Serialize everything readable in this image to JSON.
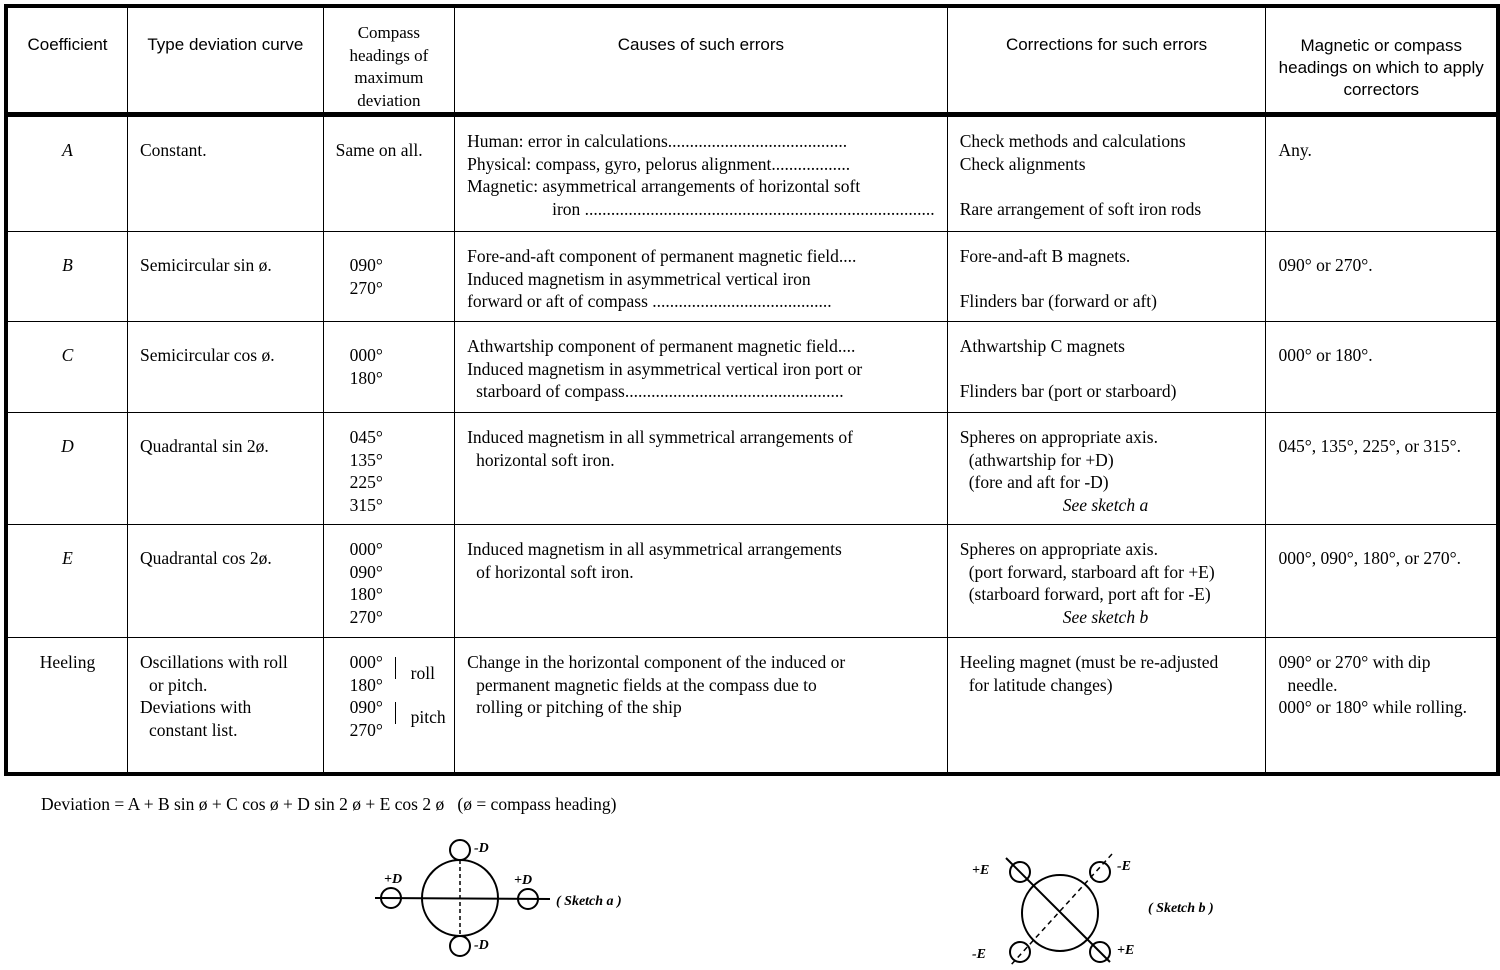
{
  "table": {
    "headers": [
      "Coefficient",
      "Type deviation curve",
      "Compass headings of maximum deviation",
      "Causes of such errors",
      "Corrections for such errors",
      "Magnetic or compass headings on which to apply correctors"
    ],
    "header_lines": {
      "compass": [
        "Compass",
        "headings of",
        "maximum",
        "deviation"
      ],
      "magnetic": [
        "Magnetic or compass",
        "headings on which to apply",
        "correctors"
      ]
    },
    "rows": [
      {
        "coef": "A",
        "type": [
          "Constant."
        ],
        "headings": [
          "Same on all."
        ],
        "causes": [
          "Human: error in calculations.........................................",
          "Physical: compass, gyro, pelorus alignment..................",
          "Magnetic: asymmetrical arrangements of horizontal soft",
          "iron ................................................................................"
        ],
        "corrections": [
          "Check methods and calculations",
          "Check alignments",
          "",
          "Rare arrangement of soft iron rods"
        ],
        "apply": [
          "Any."
        ]
      },
      {
        "coef": "B",
        "type": [
          "Semicircular sin ø."
        ],
        "headings": [
          "090°",
          "270°"
        ],
        "causes": [
          "Fore-and-aft component of permanent magnetic field....",
          "Induced magnetism in asymmetrical vertical iron",
          "forward or aft of compass ........................................."
        ],
        "corrections": [
          "Fore-and-aft B magnets.",
          "",
          "Flinders bar (forward or aft)"
        ],
        "apply": [
          "090° or 270°."
        ]
      },
      {
        "coef": "C",
        "type": [
          "Semicircular cos ø."
        ],
        "headings": [
          "000°",
          "180°"
        ],
        "causes": [
          "Athwartship component of permanent magnetic field....",
          "Induced magnetism in asymmetrical vertical iron port or",
          "starboard of compass.................................................."
        ],
        "corrections": [
          "Athwartship C magnets",
          "",
          "Flinders bar (port or starboard)"
        ],
        "apply": [
          "000° or 180°."
        ]
      },
      {
        "coef": "D",
        "type": [
          "Quadrantal sin 2ø."
        ],
        "headings": [
          "045°",
          "135°",
          "225°",
          "315°"
        ],
        "causes": [
          "Induced magnetism in all symmetrical arrangements of",
          "horizontal soft iron."
        ],
        "corrections": [
          "Spheres on appropriate axis.",
          "(athwartship for +D)",
          "(fore and aft for -D)",
          "See sketch a"
        ],
        "apply": [
          "045°, 135°, 225°, or 315°."
        ]
      },
      {
        "coef": "E",
        "type": [
          "Quadrantal cos 2ø."
        ],
        "headings": [
          "000°",
          "090°",
          "180°",
          "270°"
        ],
        "causes": [
          "Induced magnetism in all asymmetrical arrangements",
          "of horizontal soft iron."
        ],
        "corrections": [
          "Spheres on appropriate axis.",
          "(port forward, starboard aft for +E)",
          "(starboard forward, port aft for -E)",
          "See sketch b"
        ],
        "apply": [
          "000°, 090°, 180°, or 270°."
        ]
      },
      {
        "coef": "Heeling",
        "type": [
          "Oscillations with roll",
          "or pitch.",
          "Deviations with",
          "constant list."
        ],
        "headings": [
          "000°",
          "180°",
          "090°",
          "270°"
        ],
        "heading_groups": [
          "roll",
          "pitch"
        ],
        "causes": [
          "Change in the horizontal component of the induced or",
          "permanent magnetic fields at the compass due to",
          "rolling or pitching of the ship"
        ],
        "corrections": [
          "Heeling magnet (must be re-adjusted",
          "for latitude changes)"
        ],
        "apply": [
          "090° or 270° with dip",
          "needle.",
          "000° or 180° while rolling."
        ]
      }
    ]
  },
  "formula": "Deviation = A + B sin ø + C cos ø + D sin 2 ø + E cos 2 ø   (ø = compass heading)",
  "sketch_a": {
    "label": "( Sketch a )",
    "marks": [
      "-D",
      "+D",
      "+D",
      "-D"
    ]
  },
  "sketch_b": {
    "label": "( Sketch b )",
    "marks": [
      "+E",
      "-E",
      "-E",
      "+E"
    ]
  }
}
